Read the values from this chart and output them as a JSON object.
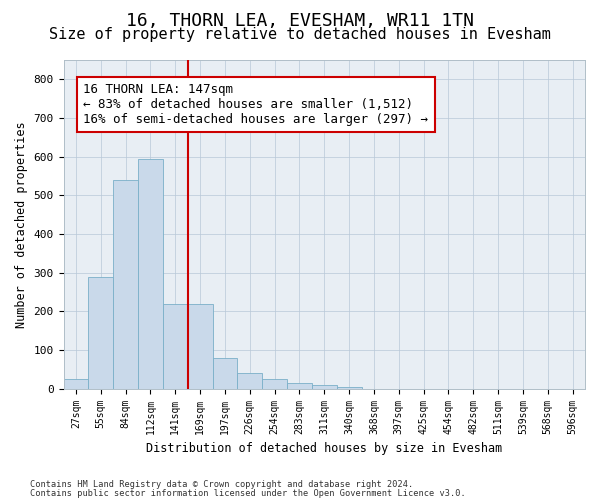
{
  "title": "16, THORN LEA, EVESHAM, WR11 1TN",
  "subtitle": "Size of property relative to detached houses in Evesham",
  "xlabel": "Distribution of detached houses by size in Evesham",
  "ylabel": "Number of detached properties",
  "footer_line1": "Contains HM Land Registry data © Crown copyright and database right 2024.",
  "footer_line2": "Contains public sector information licensed under the Open Government Licence v3.0.",
  "bin_labels": [
    "27sqm",
    "55sqm",
    "84sqm",
    "112sqm",
    "141sqm",
    "169sqm",
    "197sqm",
    "226sqm",
    "254sqm",
    "283sqm",
    "311sqm",
    "340sqm",
    "368sqm",
    "397sqm",
    "425sqm",
    "454sqm",
    "482sqm",
    "511sqm",
    "539sqm",
    "568sqm",
    "596sqm"
  ],
  "bar_values": [
    25,
    290,
    540,
    595,
    220,
    220,
    80,
    40,
    25,
    15,
    10,
    5,
    0,
    0,
    0,
    0,
    0,
    0,
    0,
    0,
    0
  ],
  "bar_color": "#c9d9ea",
  "bar_edge_color": "#7aafc8",
  "vline_x": 4.5,
  "vline_color": "#cc0000",
  "annotation_text": "16 THORN LEA: 147sqm\n← 83% of detached houses are smaller (1,512)\n16% of semi-detached houses are larger (297) →",
  "annotation_box_color": "#ffffff",
  "annotation_box_edge": "#cc0000",
  "ylim": [
    0,
    850
  ],
  "yticks": [
    0,
    100,
    200,
    300,
    400,
    500,
    600,
    700,
    800
  ],
  "plot_bg_color": "#e8eef4",
  "title_fontsize": 13,
  "subtitle_fontsize": 11,
  "annotation_fontsize": 9,
  "figsize": [
    6.0,
    5.0
  ],
  "dpi": 100
}
